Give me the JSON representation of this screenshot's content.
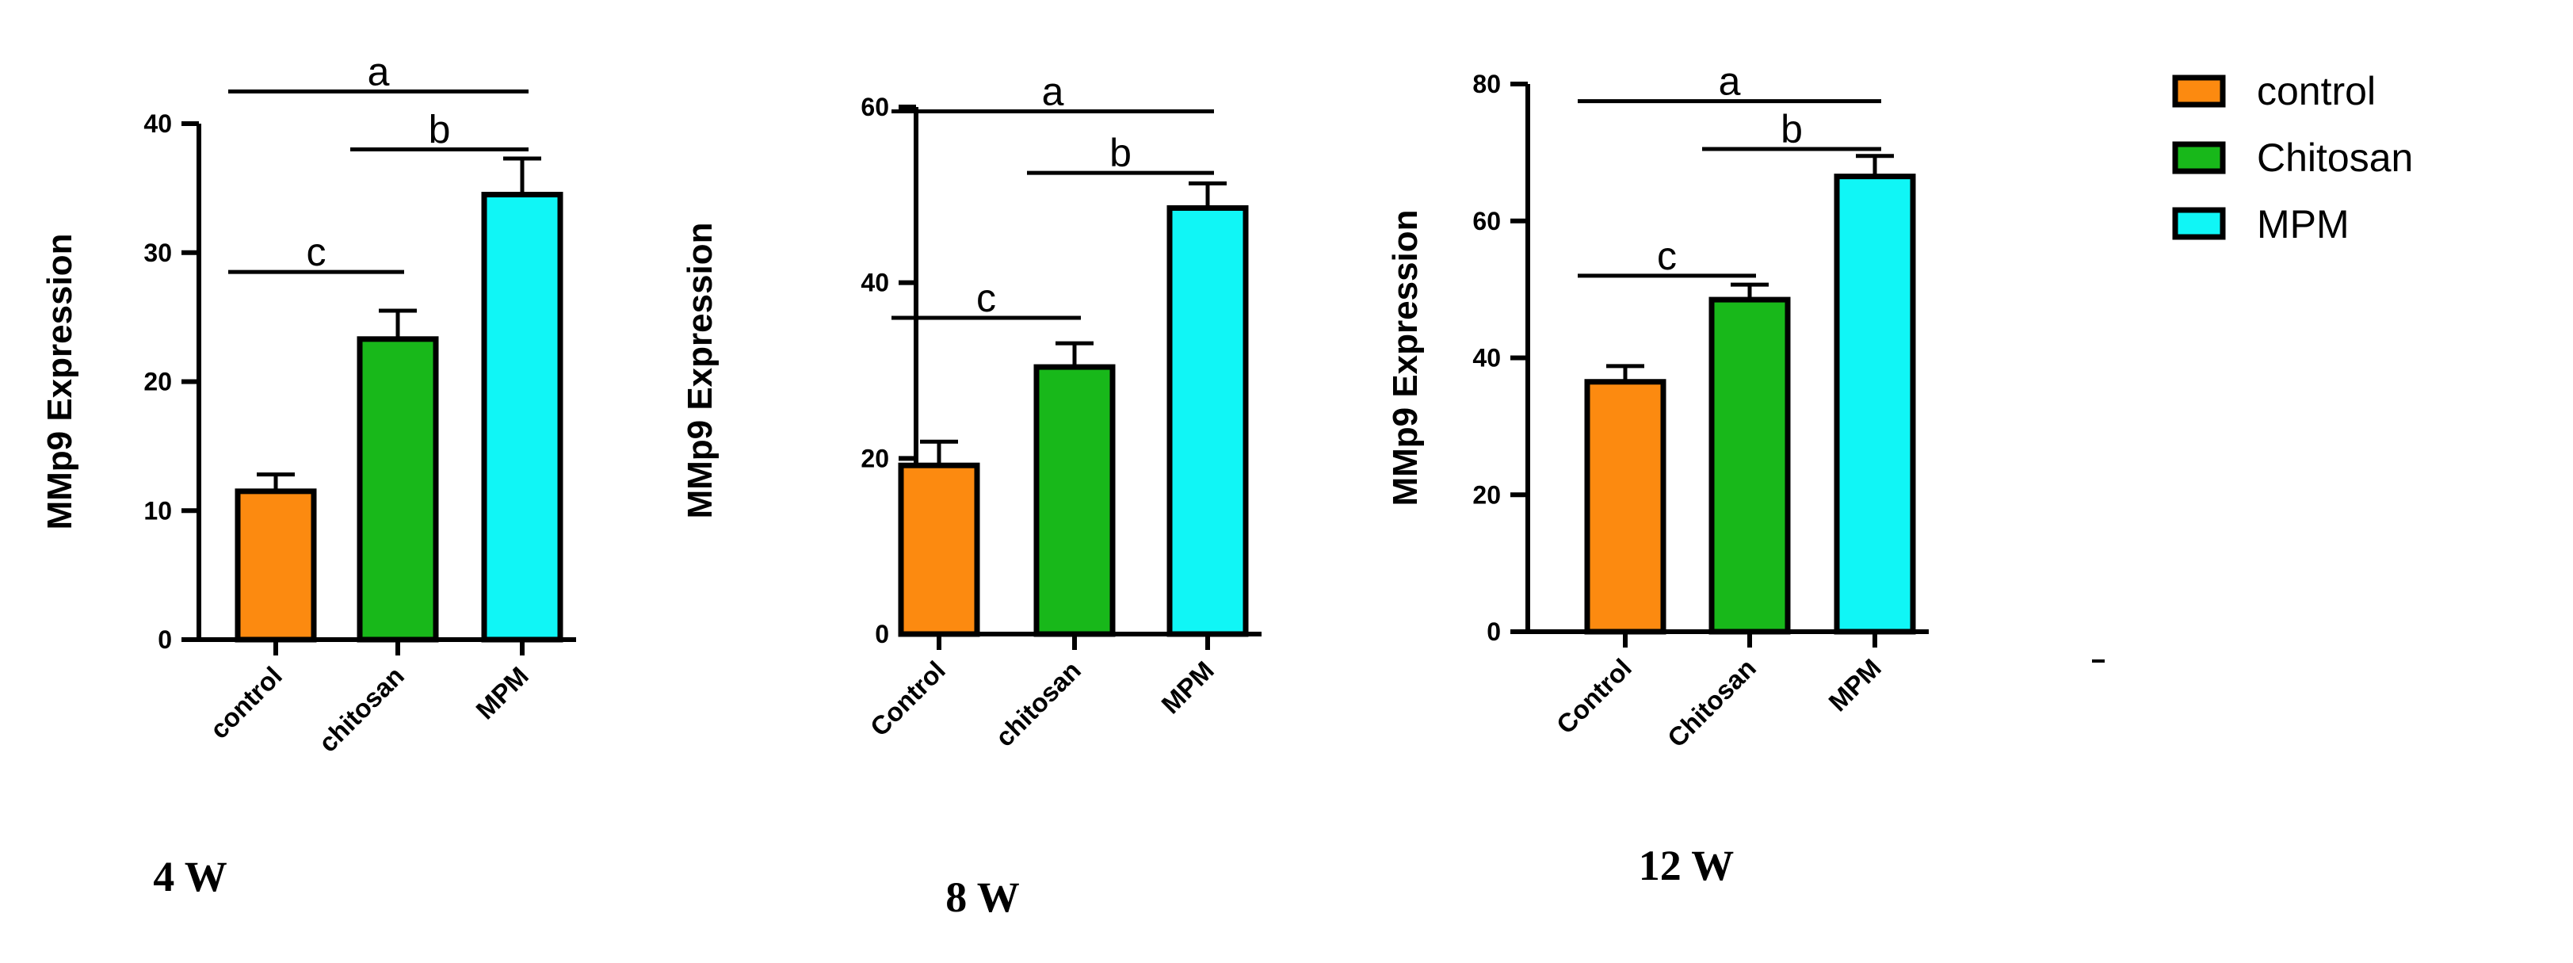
{
  "chart_data": [
    {
      "type": "bar",
      "panel_label": "4 W",
      "ylabel": "MMp9 Expression",
      "ylim": [
        0,
        40
      ],
      "yticks": [
        0,
        10,
        20,
        30,
        40
      ],
      "categories": [
        "control",
        "chitosan",
        "MPM"
      ],
      "values": [
        11.5,
        23.3,
        34.5
      ],
      "errors": [
        1.3,
        2.2,
        2.8
      ],
      "colors": [
        "#fc8a10",
        "#18b81a",
        "#10f6f6"
      ],
      "significance": [
        {
          "label": "a",
          "from": 0,
          "to": 2,
          "y": 42.5
        },
        {
          "label": "b",
          "from": 1,
          "to": 2,
          "y": 38.0
        },
        {
          "label": "c",
          "from": 0,
          "to": 1,
          "y": 28.5
        }
      ]
    },
    {
      "type": "bar",
      "panel_label": "8 W",
      "ylabel": "MMp9 Expression",
      "ylim": [
        0,
        60
      ],
      "yticks": [
        0,
        20,
        40,
        60
      ],
      "categories": [
        "Control",
        "chitosan",
        "MPM"
      ],
      "values": [
        19.2,
        30.4,
        48.5
      ],
      "errors": [
        2.7,
        2.7,
        2.8
      ],
      "colors": [
        "#fc8a10",
        "#18b81a",
        "#10f6f6"
      ],
      "significance": [
        {
          "label": "a",
          "from": 0,
          "to": 2,
          "y": 59.5
        },
        {
          "label": "b",
          "from": 1,
          "to": 2,
          "y": 52.5
        },
        {
          "label": "c",
          "from": 0,
          "to": 1,
          "y": 36.0
        }
      ]
    },
    {
      "type": "bar",
      "panel_label": "12 W",
      "ylabel": "MMp9 Expression",
      "ylim": [
        0,
        80
      ],
      "yticks": [
        0,
        20,
        40,
        60,
        80
      ],
      "categories": [
        "Control",
        "Chitosan",
        "MPM"
      ],
      "values": [
        36.5,
        48.5,
        66.5
      ],
      "errors": [
        2.3,
        2.2,
        3.0
      ],
      "colors": [
        "#fc8a10",
        "#18b81a",
        "#10f6f6"
      ],
      "significance": [
        {
          "label": "a",
          "from": 0,
          "to": 2,
          "y": 77.5
        },
        {
          "label": "b",
          "from": 1,
          "to": 2,
          "y": 70.5
        },
        {
          "label": "c",
          "from": 0,
          "to": 1,
          "y": 52.0
        }
      ]
    }
  ],
  "legend": {
    "items": [
      {
        "label": "control",
        "color": "#fc8a10"
      },
      {
        "label": "Chitosan",
        "color": "#18b81a"
      },
      {
        "label": "MPM",
        "color": "#10f6f6"
      }
    ]
  }
}
